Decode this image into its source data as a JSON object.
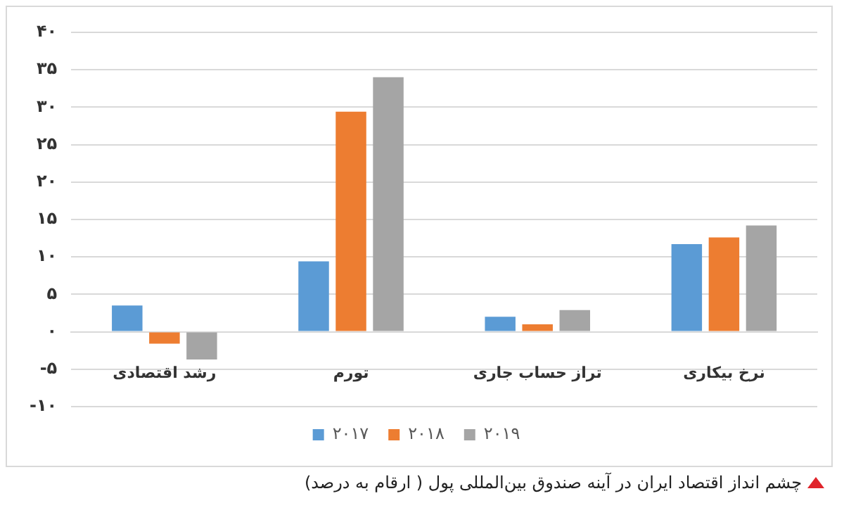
{
  "chart_data": {
    "type": "bar",
    "categories": [
      "رشد اقتصادی",
      "تورم",
      "تراز حساب جاری",
      "نرخ بیکاری"
    ],
    "series": [
      {
        "name": "۲۰۱۷",
        "color": "#5b9bd5",
        "values": [
          3.5,
          9.4,
          2.0,
          11.7
        ]
      },
      {
        "name": "۲۰۱۸",
        "color": "#ed7d31",
        "values": [
          -1.6,
          29.4,
          1.0,
          12.6
        ]
      },
      {
        "name": "۲۰۱۹",
        "color": "#a5a5a5",
        "values": [
          -3.7,
          34.0,
          2.9,
          14.2
        ]
      }
    ],
    "ylim": [
      -10,
      40
    ],
    "yticks": [
      {
        "value": -10,
        "label": "-۱۰"
      },
      {
        "value": -5,
        "label": "-۵"
      },
      {
        "value": 0,
        "label": "۰"
      },
      {
        "value": 5,
        "label": "۵"
      },
      {
        "value": 10,
        "label": "۱۰"
      },
      {
        "value": 15,
        "label": "۱۵"
      },
      {
        "value": 20,
        "label": "۲۰"
      },
      {
        "value": 25,
        "label": "۲۵"
      },
      {
        "value": 30,
        "label": "۳۰"
      },
      {
        "value": 35,
        "label": "۳۵"
      },
      {
        "value": 40,
        "label": "۴۰"
      }
    ],
    "grid": "y",
    "legend": "bottom",
    "annotations": [
      "چشم انداز اقتصاد ایران در آینه صندوق بین‌المللی پول ( ارقام به درصد)"
    ]
  }
}
